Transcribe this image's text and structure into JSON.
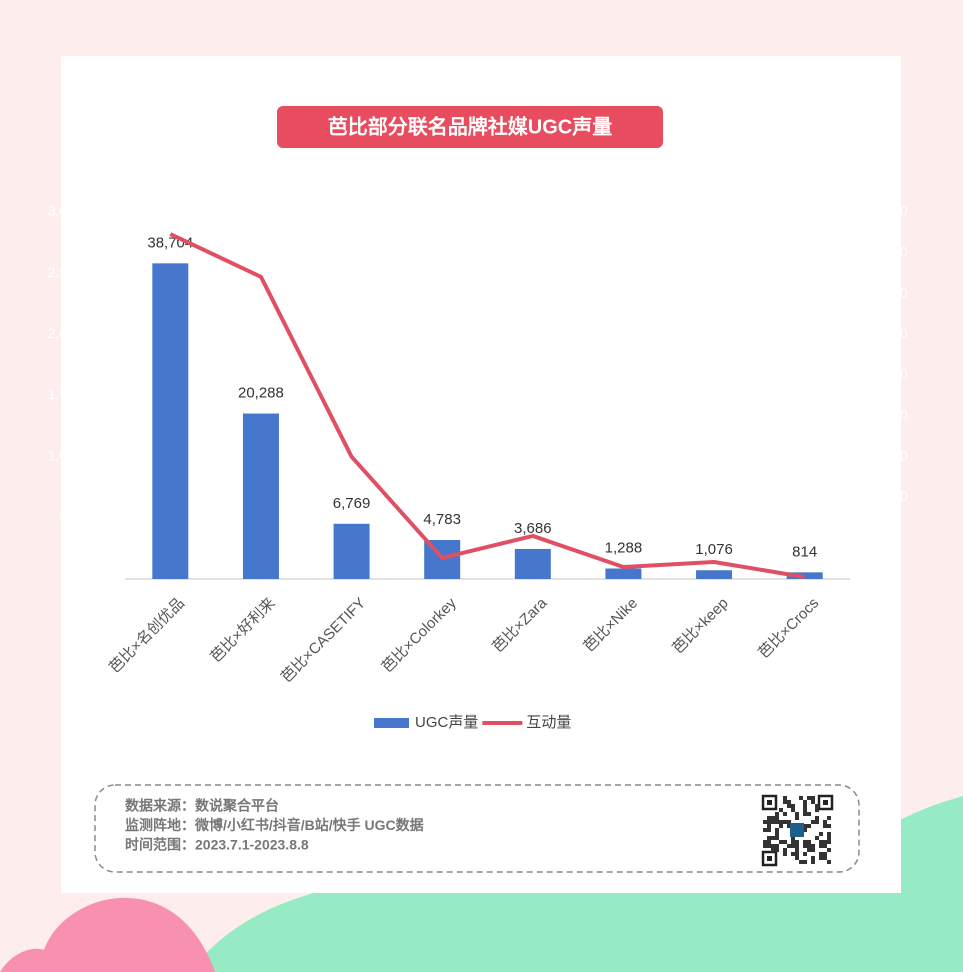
{
  "chart_data": {
    "type": "combo",
    "title": "芭比部分联名品牌社媒UGC声量",
    "categories": [
      "芭比×名创优品",
      "芭比×好利来",
      "芭比×CASETIFY",
      "芭比×Colorkey",
      "芭比×Zara",
      "芭比×Nike",
      "芭比×keep",
      "芭比×Crocs"
    ],
    "series": [
      {
        "name": "UGC声量",
        "type": "bar",
        "color": "#4677cc",
        "axis": "y2",
        "values": [
          38704,
          20288,
          6769,
          4783,
          3686,
          1288,
          1076,
          814
        ],
        "value_labels": [
          "38,704",
          "20,288",
          "6,769",
          "4,783",
          "3,686",
          "1,288",
          "1,076",
          "814"
        ]
      },
      {
        "name": "互动量",
        "type": "line",
        "color": "#e05064",
        "values": [
          2820000,
          2470000,
          1000000,
          172000,
          352000,
          98000,
          139000,
          16000
        ]
      }
    ],
    "ylim": [
      0,
      3000000
    ],
    "yticks": [
      0,
      {
        "value": 500000,
        "label": "500,000"
      },
      {
        "value": 1000000,
        "label": "1,000,000"
      },
      {
        "value": 1500000,
        "label": "1,500,000"
      },
      {
        "value": 2000000,
        "label": "2,000,000"
      },
      {
        "value": 2500000,
        "label": "2,500,000"
      },
      {
        "value": 3000000,
        "label": "3,000,000"
      }
    ],
    "y2lim": [
      0,
      45000
    ],
    "y2ticks": [
      0,
      {
        "value": 5000,
        "label": "5,000"
      },
      {
        "value": 10000,
        "label": "10,000"
      },
      {
        "value": 15000,
        "label": "15,000"
      },
      {
        "value": 20000,
        "label": "20,000"
      },
      {
        "value": 25000,
        "label": "25,000"
      },
      {
        "value": 30000,
        "label": "30,000"
      },
      {
        "value": 35000,
        "label": "35,000"
      },
      {
        "value": 40000,
        "label": "40,000"
      },
      {
        "value": 45000,
        "label": "45,000"
      }
    ],
    "tick_label_color": "#ffffff",
    "legend": "bottom"
  },
  "footer": [
    "数据来源：数说聚合平台",
    "监测阵地：微博/小红书/抖音/B站/快手 UGC数据",
    "时间范围：2023.7.1-2023.8.8"
  ]
}
